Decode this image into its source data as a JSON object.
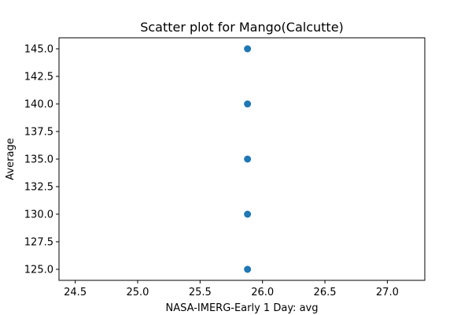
{
  "chart_data": {
    "type": "scatter",
    "title": "Scatter plot for Mango(Calcutte)",
    "xlabel": "NASA-IMERG-Early 1 Day: avg",
    "ylabel": "Average",
    "xlim": [
      24.37,
      27.3
    ],
    "ylim": [
      124.0,
      146.0
    ],
    "x_ticks": [
      24.5,
      25.0,
      25.5,
      26.0,
      26.5,
      27.0
    ],
    "x_tick_labels": [
      "24.5",
      "25.0",
      "25.5",
      "26.0",
      "26.5",
      "27.0"
    ],
    "y_ticks": [
      125.0,
      127.5,
      130.0,
      132.5,
      135.0,
      137.5,
      140.0,
      142.5,
      145.0
    ],
    "y_tick_labels": [
      "125.0",
      "127.5",
      "130.0",
      "132.5",
      "135.0",
      "137.5",
      "140.0",
      "142.5",
      "145.0"
    ],
    "grid": false,
    "series": [
      {
        "name": "Mango(Calcutte)",
        "color": "#1f77b4",
        "points": [
          {
            "x": 25.88,
            "y": 125.0
          },
          {
            "x": 25.88,
            "y": 130.0
          },
          {
            "x": 25.88,
            "y": 135.0
          },
          {
            "x": 25.88,
            "y": 140.0
          },
          {
            "x": 25.88,
            "y": 145.0
          }
        ]
      }
    ]
  }
}
